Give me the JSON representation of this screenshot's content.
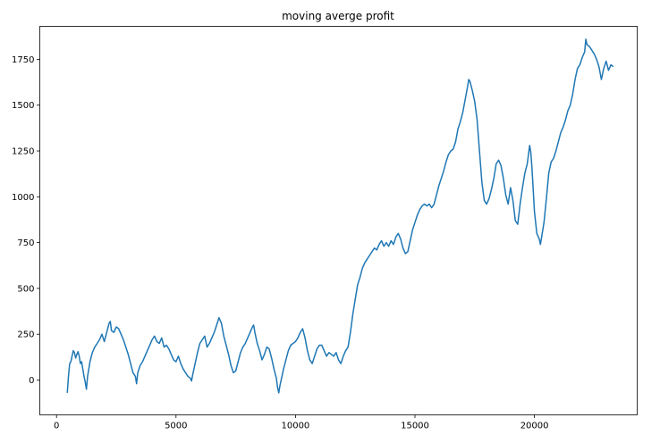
{
  "chart_data": {
    "type": "line",
    "title": "moving averge profit",
    "xlabel": "",
    "ylabel": "",
    "xlim": [
      -700,
      24300
    ],
    "ylim": [
      -190,
      1930
    ],
    "xticks": [
      0,
      5000,
      10000,
      15000,
      20000
    ],
    "yticks": [
      0,
      250,
      500,
      750,
      1000,
      1250,
      1500,
      1750
    ],
    "grid": false,
    "legend": "none",
    "series": [
      {
        "color": "#1f77b4",
        "points": [
          [
            450,
            -70
          ],
          [
            500,
            20
          ],
          [
            550,
            90
          ],
          [
            600,
            100
          ],
          [
            650,
            130
          ],
          [
            700,
            160
          ],
          [
            750,
            150
          ],
          [
            800,
            120
          ],
          [
            850,
            140
          ],
          [
            900,
            155
          ],
          [
            950,
            130
          ],
          [
            1000,
            90
          ],
          [
            1050,
            100
          ],
          [
            1100,
            60
          ],
          [
            1150,
            20
          ],
          [
            1200,
            -10
          ],
          [
            1250,
            -50
          ],
          [
            1300,
            20
          ],
          [
            1350,
            60
          ],
          [
            1400,
            100
          ],
          [
            1500,
            150
          ],
          [
            1600,
            180
          ],
          [
            1700,
            200
          ],
          [
            1800,
            220
          ],
          [
            1900,
            250
          ],
          [
            2000,
            210
          ],
          [
            2100,
            260
          ],
          [
            2200,
            310
          ],
          [
            2250,
            320
          ],
          [
            2300,
            270
          ],
          [
            2400,
            260
          ],
          [
            2500,
            290
          ],
          [
            2600,
            280
          ],
          [
            2700,
            250
          ],
          [
            2800,
            220
          ],
          [
            2900,
            180
          ],
          [
            3000,
            140
          ],
          [
            3100,
            90
          ],
          [
            3200,
            40
          ],
          [
            3300,
            20
          ],
          [
            3350,
            -20
          ],
          [
            3400,
            40
          ],
          [
            3500,
            80
          ],
          [
            3600,
            100
          ],
          [
            3700,
            130
          ],
          [
            3800,
            160
          ],
          [
            3900,
            190
          ],
          [
            4000,
            220
          ],
          [
            4100,
            240
          ],
          [
            4200,
            210
          ],
          [
            4300,
            200
          ],
          [
            4400,
            230
          ],
          [
            4500,
            180
          ],
          [
            4600,
            190
          ],
          [
            4700,
            170
          ],
          [
            4800,
            140
          ],
          [
            4900,
            110
          ],
          [
            5000,
            100
          ],
          [
            5100,
            130
          ],
          [
            5200,
            90
          ],
          [
            5300,
            60
          ],
          [
            5400,
            40
          ],
          [
            5500,
            20
          ],
          [
            5600,
            10
          ],
          [
            5650,
            -5
          ],
          [
            5700,
            30
          ],
          [
            5800,
            90
          ],
          [
            5900,
            150
          ],
          [
            6000,
            200
          ],
          [
            6100,
            220
          ],
          [
            6200,
            240
          ],
          [
            6300,
            180
          ],
          [
            6400,
            200
          ],
          [
            6500,
            230
          ],
          [
            6600,
            260
          ],
          [
            6700,
            300
          ],
          [
            6800,
            340
          ],
          [
            6900,
            310
          ],
          [
            7000,
            240
          ],
          [
            7100,
            190
          ],
          [
            7200,
            140
          ],
          [
            7300,
            80
          ],
          [
            7400,
            40
          ],
          [
            7500,
            50
          ],
          [
            7600,
            100
          ],
          [
            7700,
            150
          ],
          [
            7800,
            180
          ],
          [
            7900,
            200
          ],
          [
            8000,
            230
          ],
          [
            8100,
            260
          ],
          [
            8200,
            290
          ],
          [
            8250,
            300
          ],
          [
            8300,
            260
          ],
          [
            8400,
            200
          ],
          [
            8500,
            160
          ],
          [
            8600,
            110
          ],
          [
            8700,
            140
          ],
          [
            8800,
            180
          ],
          [
            8900,
            170
          ],
          [
            9000,
            120
          ],
          [
            9100,
            60
          ],
          [
            9200,
            10
          ],
          [
            9250,
            -40
          ],
          [
            9300,
            -70
          ],
          [
            9350,
            -30
          ],
          [
            9400,
            0
          ],
          [
            9500,
            60
          ],
          [
            9600,
            110
          ],
          [
            9700,
            160
          ],
          [
            9800,
            190
          ],
          [
            9900,
            200
          ],
          [
            10000,
            210
          ],
          [
            10100,
            230
          ],
          [
            10200,
            260
          ],
          [
            10300,
            280
          ],
          [
            10400,
            230
          ],
          [
            10500,
            160
          ],
          [
            10600,
            110
          ],
          [
            10700,
            90
          ],
          [
            10800,
            130
          ],
          [
            10900,
            170
          ],
          [
            11000,
            190
          ],
          [
            11100,
            190
          ],
          [
            11200,
            160
          ],
          [
            11300,
            130
          ],
          [
            11400,
            150
          ],
          [
            11500,
            140
          ],
          [
            11600,
            130
          ],
          [
            11700,
            150
          ],
          [
            11800,
            110
          ],
          [
            11900,
            90
          ],
          [
            12000,
            130
          ],
          [
            12100,
            160
          ],
          [
            12200,
            180
          ],
          [
            12300,
            260
          ],
          [
            12400,
            360
          ],
          [
            12500,
            440
          ],
          [
            12600,
            520
          ],
          [
            12700,
            560
          ],
          [
            12800,
            610
          ],
          [
            12900,
            640
          ],
          [
            13000,
            660
          ],
          [
            13100,
            680
          ],
          [
            13200,
            700
          ],
          [
            13300,
            720
          ],
          [
            13400,
            710
          ],
          [
            13500,
            740
          ],
          [
            13600,
            760
          ],
          [
            13700,
            730
          ],
          [
            13800,
            750
          ],
          [
            13900,
            730
          ],
          [
            14000,
            760
          ],
          [
            14100,
            740
          ],
          [
            14200,
            780
          ],
          [
            14300,
            800
          ],
          [
            14400,
            770
          ],
          [
            14500,
            720
          ],
          [
            14600,
            690
          ],
          [
            14700,
            700
          ],
          [
            14800,
            760
          ],
          [
            14900,
            820
          ],
          [
            15000,
            860
          ],
          [
            15100,
            900
          ],
          [
            15200,
            930
          ],
          [
            15300,
            950
          ],
          [
            15400,
            960
          ],
          [
            15500,
            950
          ],
          [
            15600,
            960
          ],
          [
            15700,
            940
          ],
          [
            15800,
            960
          ],
          [
            15900,
            1010
          ],
          [
            16000,
            1060
          ],
          [
            16100,
            1100
          ],
          [
            16200,
            1140
          ],
          [
            16300,
            1190
          ],
          [
            16400,
            1230
          ],
          [
            16500,
            1250
          ],
          [
            16600,
            1260
          ],
          [
            16700,
            1300
          ],
          [
            16800,
            1370
          ],
          [
            16900,
            1410
          ],
          [
            17000,
            1460
          ],
          [
            17100,
            1530
          ],
          [
            17200,
            1600
          ],
          [
            17250,
            1640
          ],
          [
            17300,
            1630
          ],
          [
            17400,
            1580
          ],
          [
            17500,
            1520
          ],
          [
            17600,
            1420
          ],
          [
            17700,
            1250
          ],
          [
            17800,
            1080
          ],
          [
            17900,
            980
          ],
          [
            18000,
            960
          ],
          [
            18100,
            990
          ],
          [
            18200,
            1040
          ],
          [
            18300,
            1100
          ],
          [
            18400,
            1180
          ],
          [
            18500,
            1200
          ],
          [
            18600,
            1170
          ],
          [
            18700,
            1100
          ],
          [
            18800,
            1010
          ],
          [
            18900,
            960
          ],
          [
            19000,
            1050
          ],
          [
            19100,
            980
          ],
          [
            19200,
            870
          ],
          [
            19300,
            850
          ],
          [
            19400,
            960
          ],
          [
            19500,
            1050
          ],
          [
            19600,
            1130
          ],
          [
            19700,
            1180
          ],
          [
            19800,
            1280
          ],
          [
            19850,
            1240
          ],
          [
            19900,
            1150
          ],
          [
            20000,
            920
          ],
          [
            20100,
            800
          ],
          [
            20200,
            770
          ],
          [
            20250,
            740
          ],
          [
            20300,
            780
          ],
          [
            20400,
            860
          ],
          [
            20500,
            990
          ],
          [
            20600,
            1130
          ],
          [
            20700,
            1190
          ],
          [
            20800,
            1210
          ],
          [
            20900,
            1250
          ],
          [
            21000,
            1300
          ],
          [
            21100,
            1350
          ],
          [
            21200,
            1380
          ],
          [
            21300,
            1420
          ],
          [
            21400,
            1470
          ],
          [
            21500,
            1500
          ],
          [
            21600,
            1560
          ],
          [
            21700,
            1640
          ],
          [
            21800,
            1700
          ],
          [
            21900,
            1720
          ],
          [
            22000,
            1760
          ],
          [
            22100,
            1790
          ],
          [
            22150,
            1860
          ],
          [
            22200,
            1830
          ],
          [
            22300,
            1820
          ],
          [
            22400,
            1800
          ],
          [
            22500,
            1780
          ],
          [
            22600,
            1750
          ],
          [
            22700,
            1710
          ],
          [
            22800,
            1640
          ],
          [
            22900,
            1700
          ],
          [
            23000,
            1740
          ],
          [
            23100,
            1690
          ],
          [
            23200,
            1720
          ],
          [
            23300,
            1710
          ]
        ]
      }
    ]
  }
}
